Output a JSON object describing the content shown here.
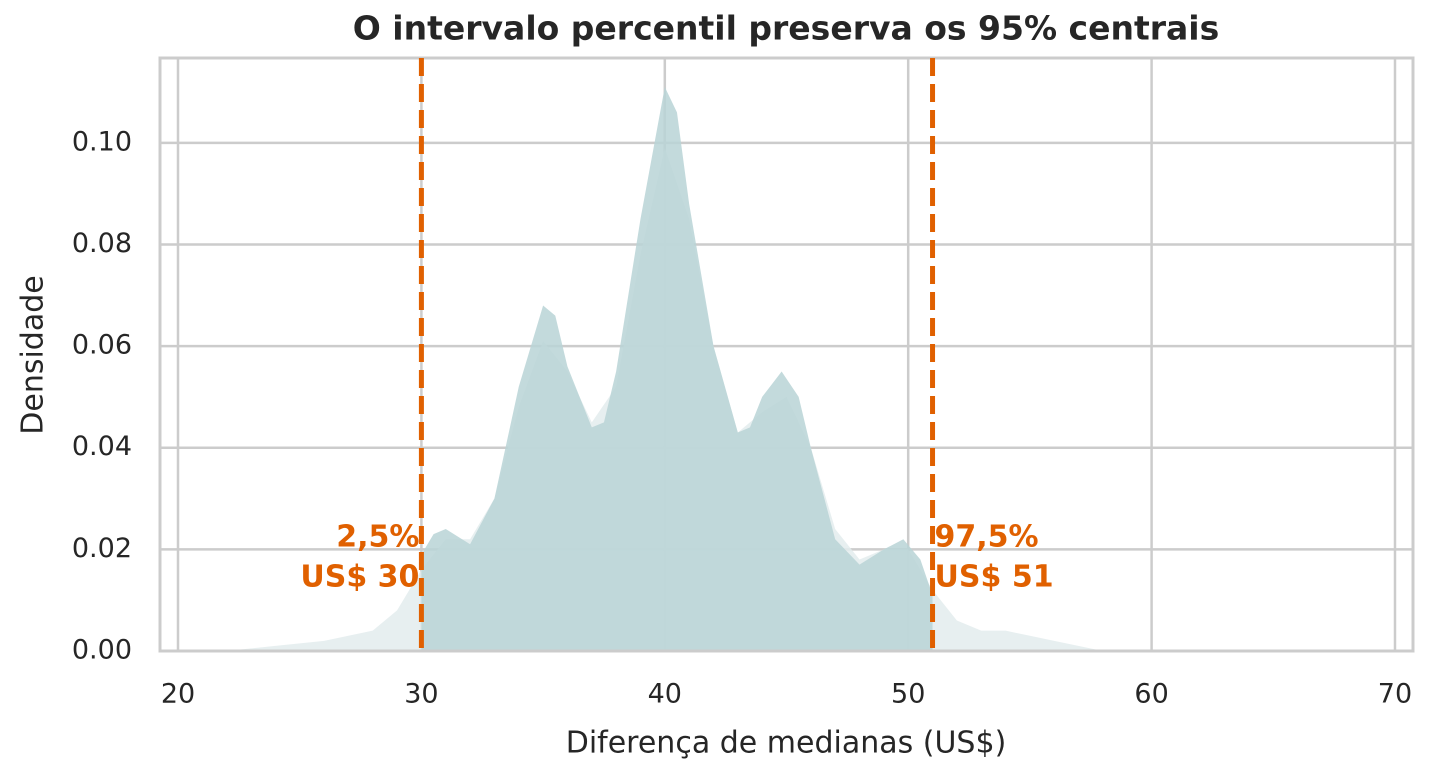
{
  "chart_data": {
    "type": "area",
    "title": "O intervalo percentil preserva os 95% centrais",
    "x_label": "Diferença de medianas (US$)",
    "y_label": "Densidade",
    "xlim": [
      19.26,
      70.74
    ],
    "ylim": [
      0,
      0.1167
    ],
    "xticks": [
      20,
      30,
      40,
      50,
      60,
      70
    ],
    "yticks": [
      {
        "value": 0,
        "label": "0.00"
      },
      {
        "value": 0.02,
        "label": "0.02"
      },
      {
        "value": 0.04,
        "label": "0.04"
      },
      {
        "value": 0.06,
        "label": "0.06"
      },
      {
        "value": 0.08,
        "label": "0.08"
      },
      {
        "value": 0.1,
        "label": "0.10"
      }
    ],
    "grid": true,
    "series": [
      {
        "color": "#e3eced",
        "x": [
          22,
          24,
          26,
          27,
          28,
          29,
          30,
          31,
          32,
          33,
          34,
          35,
          36,
          37,
          38,
          39,
          40,
          41,
          42,
          43,
          44,
          45,
          46,
          47,
          48,
          49,
          50,
          51,
          52,
          53,
          54,
          55,
          56,
          58
        ],
        "values": [
          0,
          0.001,
          0.002,
          0.003,
          0.004,
          0.008,
          0.016,
          0.022,
          0.022,
          0.03,
          0.048,
          0.061,
          0.055,
          0.045,
          0.052,
          0.078,
          0.099,
          0.085,
          0.06,
          0.043,
          0.047,
          0.05,
          0.04,
          0.024,
          0.018,
          0.02,
          0.02,
          0.012,
          0.006,
          0.004,
          0.004,
          0.003,
          0.002,
          0
        ]
      },
      {
        "color": "#b9d3d6",
        "x": [
          30,
          30.5,
          31,
          32,
          33,
          34,
          35,
          35.5,
          36,
          37,
          37.5,
          38,
          39,
          40,
          40.5,
          41,
          42,
          43,
          43.5,
          44,
          44.8,
          45.5,
          46,
          47,
          48,
          49,
          49.8,
          50.5,
          51
        ],
        "values": [
          0.019,
          0.023,
          0.024,
          0.021,
          0.03,
          0.052,
          0.068,
          0.066,
          0.056,
          0.044,
          0.045,
          0.055,
          0.085,
          0.111,
          0.106,
          0.088,
          0.06,
          0.043,
          0.044,
          0.05,
          0.055,
          0.05,
          0.04,
          0.022,
          0.017,
          0.02,
          0.022,
          0.018,
          0.011
        ]
      }
    ],
    "vlines": [
      {
        "x": 30,
        "color": "#e06000",
        "label": [
          "2,5%",
          "US$ 30"
        ],
        "align": "right"
      },
      {
        "x": 51,
        "color": "#e06000",
        "label": [
          "97,5%",
          "US$ 51"
        ],
        "align": "left"
      }
    ]
  }
}
